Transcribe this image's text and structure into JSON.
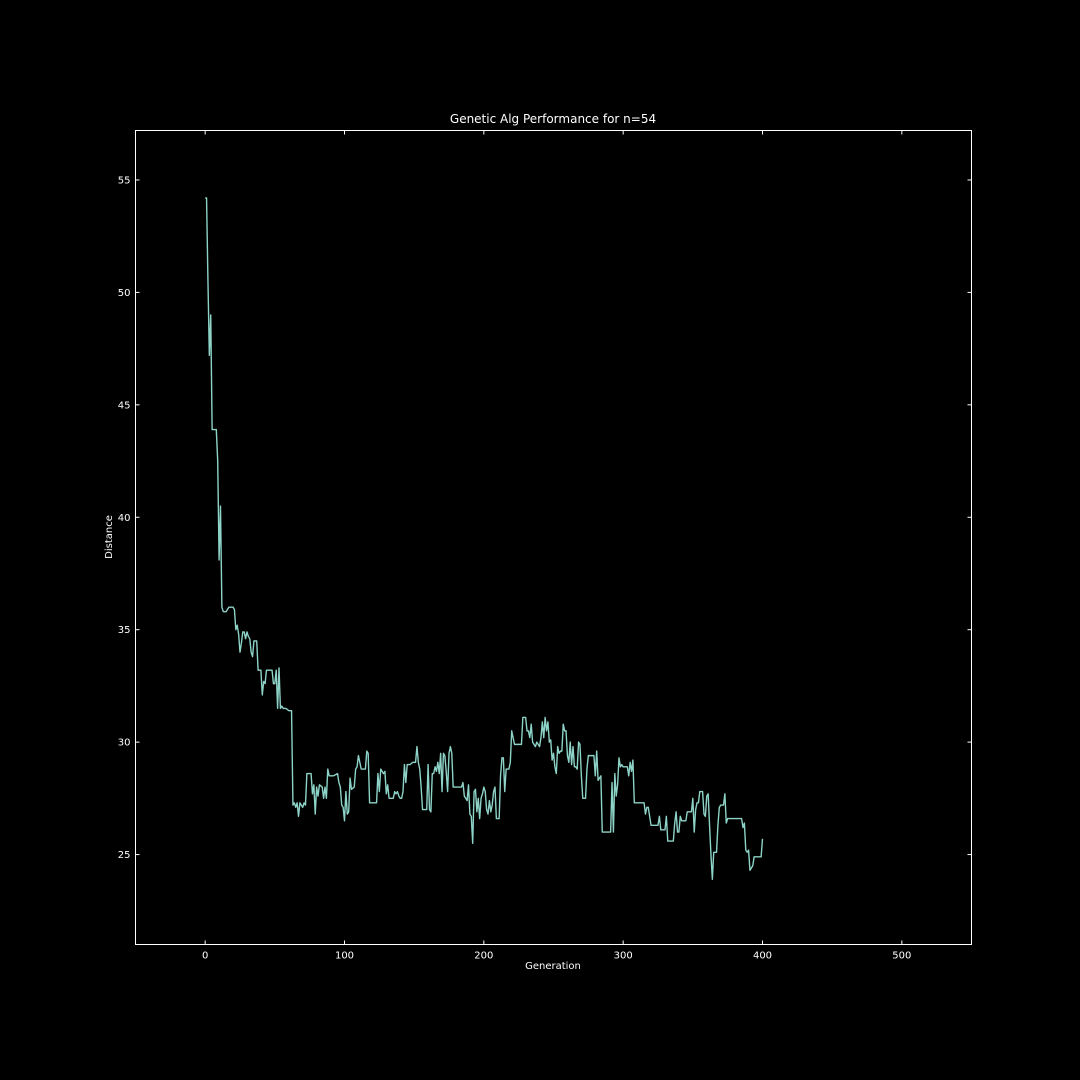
{
  "chart_data": {
    "type": "line",
    "title": "Genetic Alg Performance for n=54",
    "xlabel": "Generation",
    "ylabel": "Distance",
    "xlim": [
      -50,
      550
    ],
    "ylim": [
      21,
      57.2
    ],
    "xticks": [
      0,
      100,
      200,
      300,
      400,
      500
    ],
    "yticks": [
      25,
      30,
      35,
      40,
      45,
      50,
      55
    ],
    "grid": false,
    "line_color": "#8dd3c7",
    "background": "#000000",
    "foreground": "#ffffff",
    "series": [
      {
        "points": [
          [
            0,
            54.2
          ],
          [
            1,
            54.2
          ],
          [
            2,
            50.5
          ],
          [
            3,
            47.2
          ],
          [
            4,
            49.0
          ],
          [
            5,
            43.9
          ],
          [
            6,
            43.9
          ],
          [
            7,
            43.9
          ],
          [
            8,
            43.9
          ],
          [
            9,
            42.5
          ],
          [
            10,
            38.1
          ],
          [
            11,
            40.5
          ],
          [
            12,
            36.0
          ],
          [
            13,
            35.8
          ],
          [
            15,
            35.8
          ],
          [
            17,
            36.0
          ],
          [
            20,
            36.0
          ],
          [
            21,
            35.9
          ],
          [
            22,
            35.0
          ],
          [
            23,
            35.2
          ],
          [
            24,
            34.8
          ],
          [
            25,
            34.0
          ],
          [
            26,
            34.4
          ],
          [
            27,
            34.9
          ],
          [
            28,
            34.9
          ],
          [
            29,
            34.6
          ],
          [
            30,
            34.9
          ],
          [
            31,
            34.7
          ],
          [
            32,
            34.6
          ],
          [
            33,
            34.0
          ],
          [
            34,
            33.8
          ],
          [
            35,
            34.5
          ],
          [
            36,
            34.5
          ],
          [
            37,
            34.5
          ],
          [
            38,
            33.2
          ],
          [
            40,
            33.2
          ],
          [
            41,
            32.1
          ],
          [
            42,
            32.7
          ],
          [
            43,
            32.6
          ],
          [
            44,
            33.2
          ],
          [
            46,
            33.2
          ],
          [
            47,
            33.2
          ],
          [
            48,
            33.2
          ],
          [
            49,
            32.6
          ],
          [
            50,
            32.6
          ],
          [
            51,
            33.2
          ],
          [
            52,
            31.5
          ],
          [
            53,
            33.3
          ],
          [
            54,
            31.5
          ],
          [
            55,
            31.6
          ],
          [
            56,
            31.5
          ],
          [
            58,
            31.5
          ],
          [
            60,
            31.4
          ],
          [
            62,
            31.4
          ],
          [
            63,
            27.2
          ],
          [
            64,
            27.3
          ],
          [
            65,
            27.1
          ],
          [
            66,
            27.3
          ],
          [
            67,
            26.7
          ],
          [
            68,
            27.3
          ],
          [
            69,
            27.2
          ],
          [
            70,
            27.1
          ],
          [
            71,
            27.3
          ],
          [
            72,
            27.2
          ],
          [
            73,
            28.6
          ],
          [
            76,
            28.6
          ],
          [
            77,
            27.7
          ],
          [
            78,
            28.1
          ],
          [
            79,
            26.8
          ],
          [
            80,
            28.0
          ],
          [
            81,
            27.6
          ],
          [
            82,
            28.1
          ],
          [
            84,
            28.0
          ],
          [
            85,
            27.5
          ],
          [
            86,
            28.0
          ],
          [
            87,
            27.5
          ],
          [
            88,
            28.8
          ],
          [
            89,
            28.5
          ],
          [
            92,
            28.5
          ],
          [
            95,
            28.6
          ],
          [
            96,
            28.2
          ],
          [
            97,
            28.0
          ],
          [
            98,
            27.2
          ],
          [
            99,
            27.1
          ],
          [
            100,
            26.5
          ],
          [
            101,
            27.8
          ],
          [
            102,
            26.8
          ],
          [
            103,
            26.9
          ],
          [
            104,
            28.4
          ],
          [
            105,
            27.9
          ],
          [
            107,
            28.0
          ],
          [
            108,
            28.8
          ],
          [
            109,
            28.9
          ],
          [
            110,
            29.4
          ],
          [
            111,
            29.1
          ],
          [
            112,
            28.8
          ],
          [
            115,
            28.8
          ],
          [
            116,
            29.6
          ],
          [
            117,
            29.5
          ],
          [
            118,
            27.3
          ],
          [
            120,
            27.3
          ],
          [
            123,
            27.3
          ],
          [
            124,
            28.6
          ],
          [
            125,
            27.8
          ],
          [
            126,
            28.8
          ],
          [
            127,
            28.7
          ],
          [
            128,
            28.6
          ],
          [
            129,
            28.7
          ],
          [
            130,
            27.7
          ],
          [
            131,
            28.1
          ],
          [
            132,
            27.5
          ],
          [
            135,
            27.5
          ],
          [
            136,
            27.8
          ],
          [
            137,
            27.7
          ],
          [
            138,
            27.8
          ],
          [
            139,
            27.6
          ],
          [
            140,
            27.5
          ],
          [
            141,
            27.5
          ],
          [
            142,
            27.8
          ],
          [
            143,
            29.0
          ],
          [
            144,
            28.2
          ],
          [
            145,
            29.0
          ],
          [
            147,
            29.0
          ],
          [
            149,
            29.1
          ],
          [
            151,
            29.1
          ],
          [
            152,
            29.8
          ],
          [
            153,
            29.1
          ],
          [
            154,
            28.8
          ],
          [
            155,
            28.0
          ],
          [
            156,
            27.0
          ],
          [
            157,
            27.0
          ],
          [
            159,
            27.0
          ],
          [
            160,
            29.0
          ],
          [
            161,
            27.0
          ],
          [
            162,
            26.9
          ],
          [
            163,
            28.6
          ],
          [
            164,
            28.6
          ],
          [
            165,
            28.9
          ],
          [
            166,
            28.7
          ],
          [
            167,
            29.1
          ],
          [
            168,
            28.6
          ],
          [
            169,
            29.5
          ],
          [
            170,
            27.8
          ],
          [
            171,
            29.5
          ],
          [
            172,
            29.4
          ],
          [
            173,
            28.7
          ],
          [
            174,
            27.8
          ],
          [
            175,
            29.5
          ],
          [
            176,
            29.8
          ],
          [
            177,
            29.5
          ],
          [
            178,
            28.0
          ],
          [
            180,
            28.0
          ],
          [
            184,
            28.0
          ],
          [
            185,
            28.2
          ],
          [
            186,
            27.6
          ],
          [
            187,
            27.5
          ],
          [
            188,
            27.4
          ],
          [
            189,
            28.1
          ],
          [
            190,
            26.8
          ],
          [
            191,
            26.7
          ],
          [
            192,
            25.5
          ],
          [
            193,
            27.8
          ],
          [
            194,
            27.9
          ],
          [
            195,
            26.9
          ],
          [
            196,
            27.5
          ],
          [
            197,
            26.6
          ],
          [
            198,
            27.5
          ],
          [
            199,
            27.7
          ],
          [
            200,
            28.0
          ],
          [
            201,
            27.8
          ],
          [
            202,
            27.0
          ],
          [
            203,
            26.8
          ],
          [
            204,
            27.4
          ],
          [
            205,
            26.9
          ],
          [
            206,
            27.2
          ],
          [
            207,
            27.8
          ],
          [
            208,
            28.0
          ],
          [
            209,
            26.6
          ],
          [
            211,
            26.6
          ],
          [
            212,
            28.5
          ],
          [
            213,
            29.3
          ],
          [
            214,
            29.3
          ],
          [
            215,
            27.8
          ],
          [
            216,
            28.8
          ],
          [
            218,
            28.8
          ],
          [
            219,
            29.1
          ],
          [
            220,
            30.5
          ],
          [
            221,
            30.2
          ],
          [
            222,
            29.9
          ],
          [
            224,
            29.9
          ],
          [
            227,
            29.9
          ],
          [
            228,
            31.1
          ],
          [
            230,
            31.1
          ],
          [
            231,
            30.5
          ],
          [
            232,
            30.5
          ],
          [
            233,
            30.2
          ],
          [
            234,
            30.8
          ],
          [
            235,
            30.0
          ],
          [
            236,
            29.9
          ],
          [
            237,
            29.8
          ],
          [
            238,
            30.0
          ],
          [
            240,
            29.8
          ],
          [
            241,
            30.2
          ],
          [
            242,
            30.9
          ],
          [
            243,
            30.2
          ],
          [
            244,
            31.1
          ],
          [
            245,
            30.5
          ],
          [
            246,
            30.9
          ],
          [
            247,
            30.0
          ],
          [
            248,
            30.1
          ],
          [
            249,
            29.2
          ],
          [
            250,
            29.5
          ],
          [
            251,
            28.9
          ],
          [
            252,
            28.6
          ],
          [
            253,
            29.8
          ],
          [
            254,
            29.5
          ],
          [
            255,
            29.6
          ],
          [
            256,
            29.6
          ],
          [
            257,
            30.8
          ],
          [
            258,
            30.5
          ],
          [
            259,
            30.5
          ],
          [
            260,
            29.4
          ],
          [
            261,
            29.1
          ],
          [
            262,
            30.0
          ],
          [
            263,
            29.0
          ],
          [
            264,
            29.8
          ],
          [
            265,
            28.9
          ],
          [
            266,
            28.9
          ],
          [
            267,
            28.8
          ],
          [
            268,
            30.0
          ],
          [
            269,
            29.9
          ],
          [
            270,
            28.5
          ],
          [
            271,
            27.5
          ],
          [
            273,
            27.5
          ],
          [
            274,
            28.8
          ],
          [
            275,
            29.4
          ],
          [
            279,
            29.4
          ],
          [
            280,
            28.5
          ],
          [
            281,
            29.6
          ],
          [
            282,
            28.3
          ],
          [
            283,
            28.4
          ],
          [
            284,
            28.5
          ],
          [
            285,
            26.0
          ],
          [
            291,
            26.0
          ],
          [
            292,
            28.2
          ],
          [
            293,
            26.0
          ],
          [
            294,
            28.6
          ],
          [
            295,
            27.6
          ],
          [
            296,
            28.1
          ],
          [
            297,
            29.3
          ],
          [
            298,
            28.9
          ],
          [
            299,
            29.0
          ],
          [
            300,
            28.9
          ],
          [
            303,
            28.9
          ],
          [
            304,
            28.5
          ],
          [
            305,
            29.1
          ],
          [
            306,
            28.7
          ],
          [
            307,
            29.2
          ],
          [
            308,
            27.3
          ],
          [
            315,
            27.3
          ],
          [
            316,
            26.8
          ],
          [
            317,
            27.1
          ],
          [
            318,
            27.1
          ],
          [
            319,
            26.7
          ],
          [
            320,
            26.3
          ],
          [
            321,
            26.3
          ],
          [
            325,
            26.3
          ],
          [
            326,
            26.7
          ],
          [
            327,
            26.1
          ],
          [
            330,
            26.1
          ],
          [
            331,
            26.7
          ],
          [
            332,
            25.6
          ],
          [
            336,
            25.6
          ],
          [
            337,
            26.4
          ],
          [
            338,
            26.9
          ],
          [
            339,
            26.0
          ],
          [
            340,
            26.0
          ],
          [
            341,
            26.7
          ],
          [
            342,
            26.5
          ],
          [
            345,
            26.5
          ],
          [
            346,
            26.9
          ],
          [
            349,
            26.9
          ],
          [
            350,
            27.5
          ],
          [
            351,
            26.0
          ],
          [
            352,
            27.0
          ],
          [
            353,
            27.3
          ],
          [
            354,
            27.3
          ],
          [
            355,
            27.8
          ],
          [
            357,
            27.8
          ],
          [
            358,
            26.8
          ],
          [
            359,
            26.7
          ],
          [
            360,
            27.6
          ],
          [
            361,
            27.7
          ],
          [
            362,
            26.3
          ],
          [
            363,
            25.0
          ],
          [
            364,
            23.9
          ],
          [
            365,
            25.1
          ],
          [
            366,
            25.1
          ],
          [
            367,
            25.1
          ],
          [
            368,
            26.3
          ],
          [
            369,
            27.1
          ],
          [
            370,
            27.2
          ],
          [
            372,
            27.2
          ],
          [
            373,
            27.7
          ],
          [
            374,
            26.4
          ],
          [
            375,
            26.6
          ],
          [
            385,
            26.6
          ],
          [
            386,
            26.2
          ],
          [
            387,
            26.4
          ],
          [
            388,
            25.2
          ],
          [
            389,
            25.1
          ],
          [
            390,
            25.2
          ],
          [
            391,
            24.3
          ],
          [
            392,
            24.4
          ],
          [
            393,
            24.5
          ],
          [
            394,
            24.9
          ],
          [
            395,
            24.9
          ],
          [
            399,
            24.9
          ],
          [
            400,
            25.7
          ]
        ]
      }
    ]
  }
}
